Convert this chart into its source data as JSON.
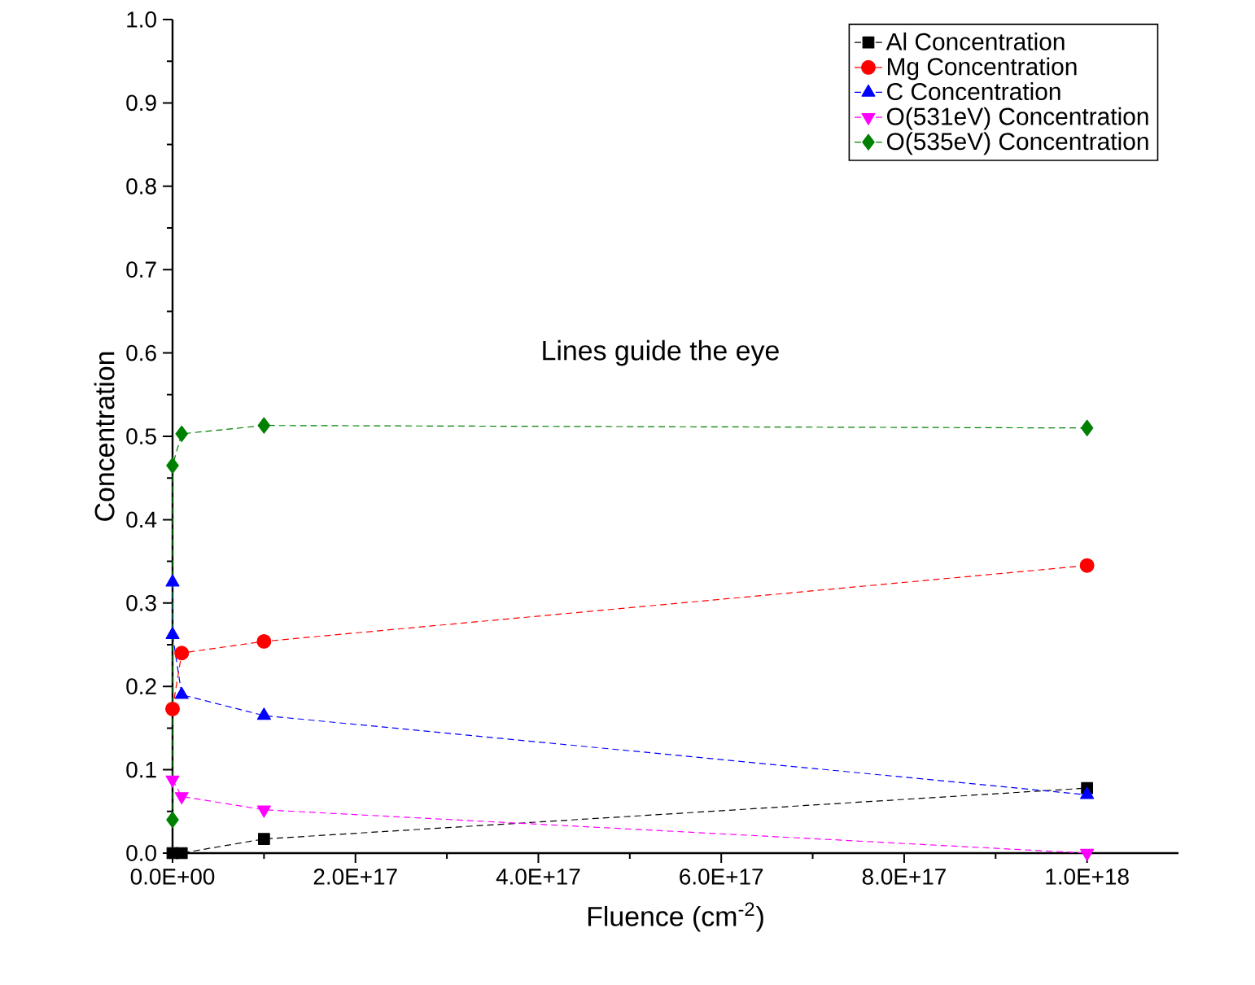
{
  "chart_data": {
    "type": "line",
    "xlabel": "Fluence (cm$^{-2}$)",
    "ylabel": "Concentration",
    "annotations": [
      "Lines guide the eye"
    ],
    "xlim": [
      0,
      1.1e+18
    ],
    "ylim": [
      0,
      1.0
    ],
    "xticks": [
      {
        "value": 0,
        "label": "0.0E+00"
      },
      {
        "value": 2e+17,
        "label": "2.0E+17"
      },
      {
        "value": 4e+17,
        "label": "4.0E+17"
      },
      {
        "value": 6e+17,
        "label": "6.0E+17"
      },
      {
        "value": 8e+17,
        "label": "8.0E+17"
      },
      {
        "value": 1e+18,
        "label": "1.0E+18"
      }
    ],
    "yticks": [
      {
        "value": 0,
        "label": "0.0"
      },
      {
        "value": 0.1,
        "label": "0.1"
      },
      {
        "value": 0.2,
        "label": "0.2"
      },
      {
        "value": 0.3,
        "label": "0.3"
      },
      {
        "value": 0.4,
        "label": "0.4"
      },
      {
        "value": 0.5,
        "label": "0.5"
      },
      {
        "value": 0.6,
        "label": "0.6"
      },
      {
        "value": 0.7,
        "label": "0.7"
      },
      {
        "value": 0.8,
        "label": "0.8"
      },
      {
        "value": 0.9,
        "label": "0.9"
      },
      {
        "value": 1.0,
        "label": "1.0"
      }
    ],
    "legend": "top right",
    "line_style": "dashed",
    "grid": false,
    "series": [
      {
        "name": "Al Concentration",
        "color": "#000000",
        "marker": "square",
        "x": [
          0,
          1e+16,
          1e+17,
          1e+18
        ],
        "values": [
          0.0,
          0.0,
          0.017,
          0.078
        ]
      },
      {
        "name": "Mg Concentration",
        "color": "#ff0000",
        "marker": "circle",
        "x": [
          0,
          1e+16,
          1e+17,
          1e+18
        ],
        "values": [
          0.173,
          0.24,
          0.254,
          0.345
        ]
      },
      {
        "name": "C Concentration",
        "color": "#0000ff",
        "marker": "triangle",
        "x": [
          0,
          0,
          1e+16,
          1e+17,
          1e+18
        ],
        "values": [
          0.325,
          0.262,
          0.19,
          0.165,
          0.07
        ]
      },
      {
        "name": "O(531eV) Concentration",
        "color": "#ff00ff",
        "marker": "triangle-down",
        "x": [
          0,
          1e+16,
          1e+17,
          1e+18
        ],
        "values": [
          0.088,
          0.068,
          0.052,
          0.0
        ]
      },
      {
        "name": "O(535eV) Concentration",
        "color": "#008000",
        "marker": "diamond",
        "x": [
          0,
          0,
          1e+16,
          1e+17,
          1e+18
        ],
        "values": [
          0.04,
          0.465,
          0.503,
          0.513,
          0.51
        ]
      }
    ]
  }
}
